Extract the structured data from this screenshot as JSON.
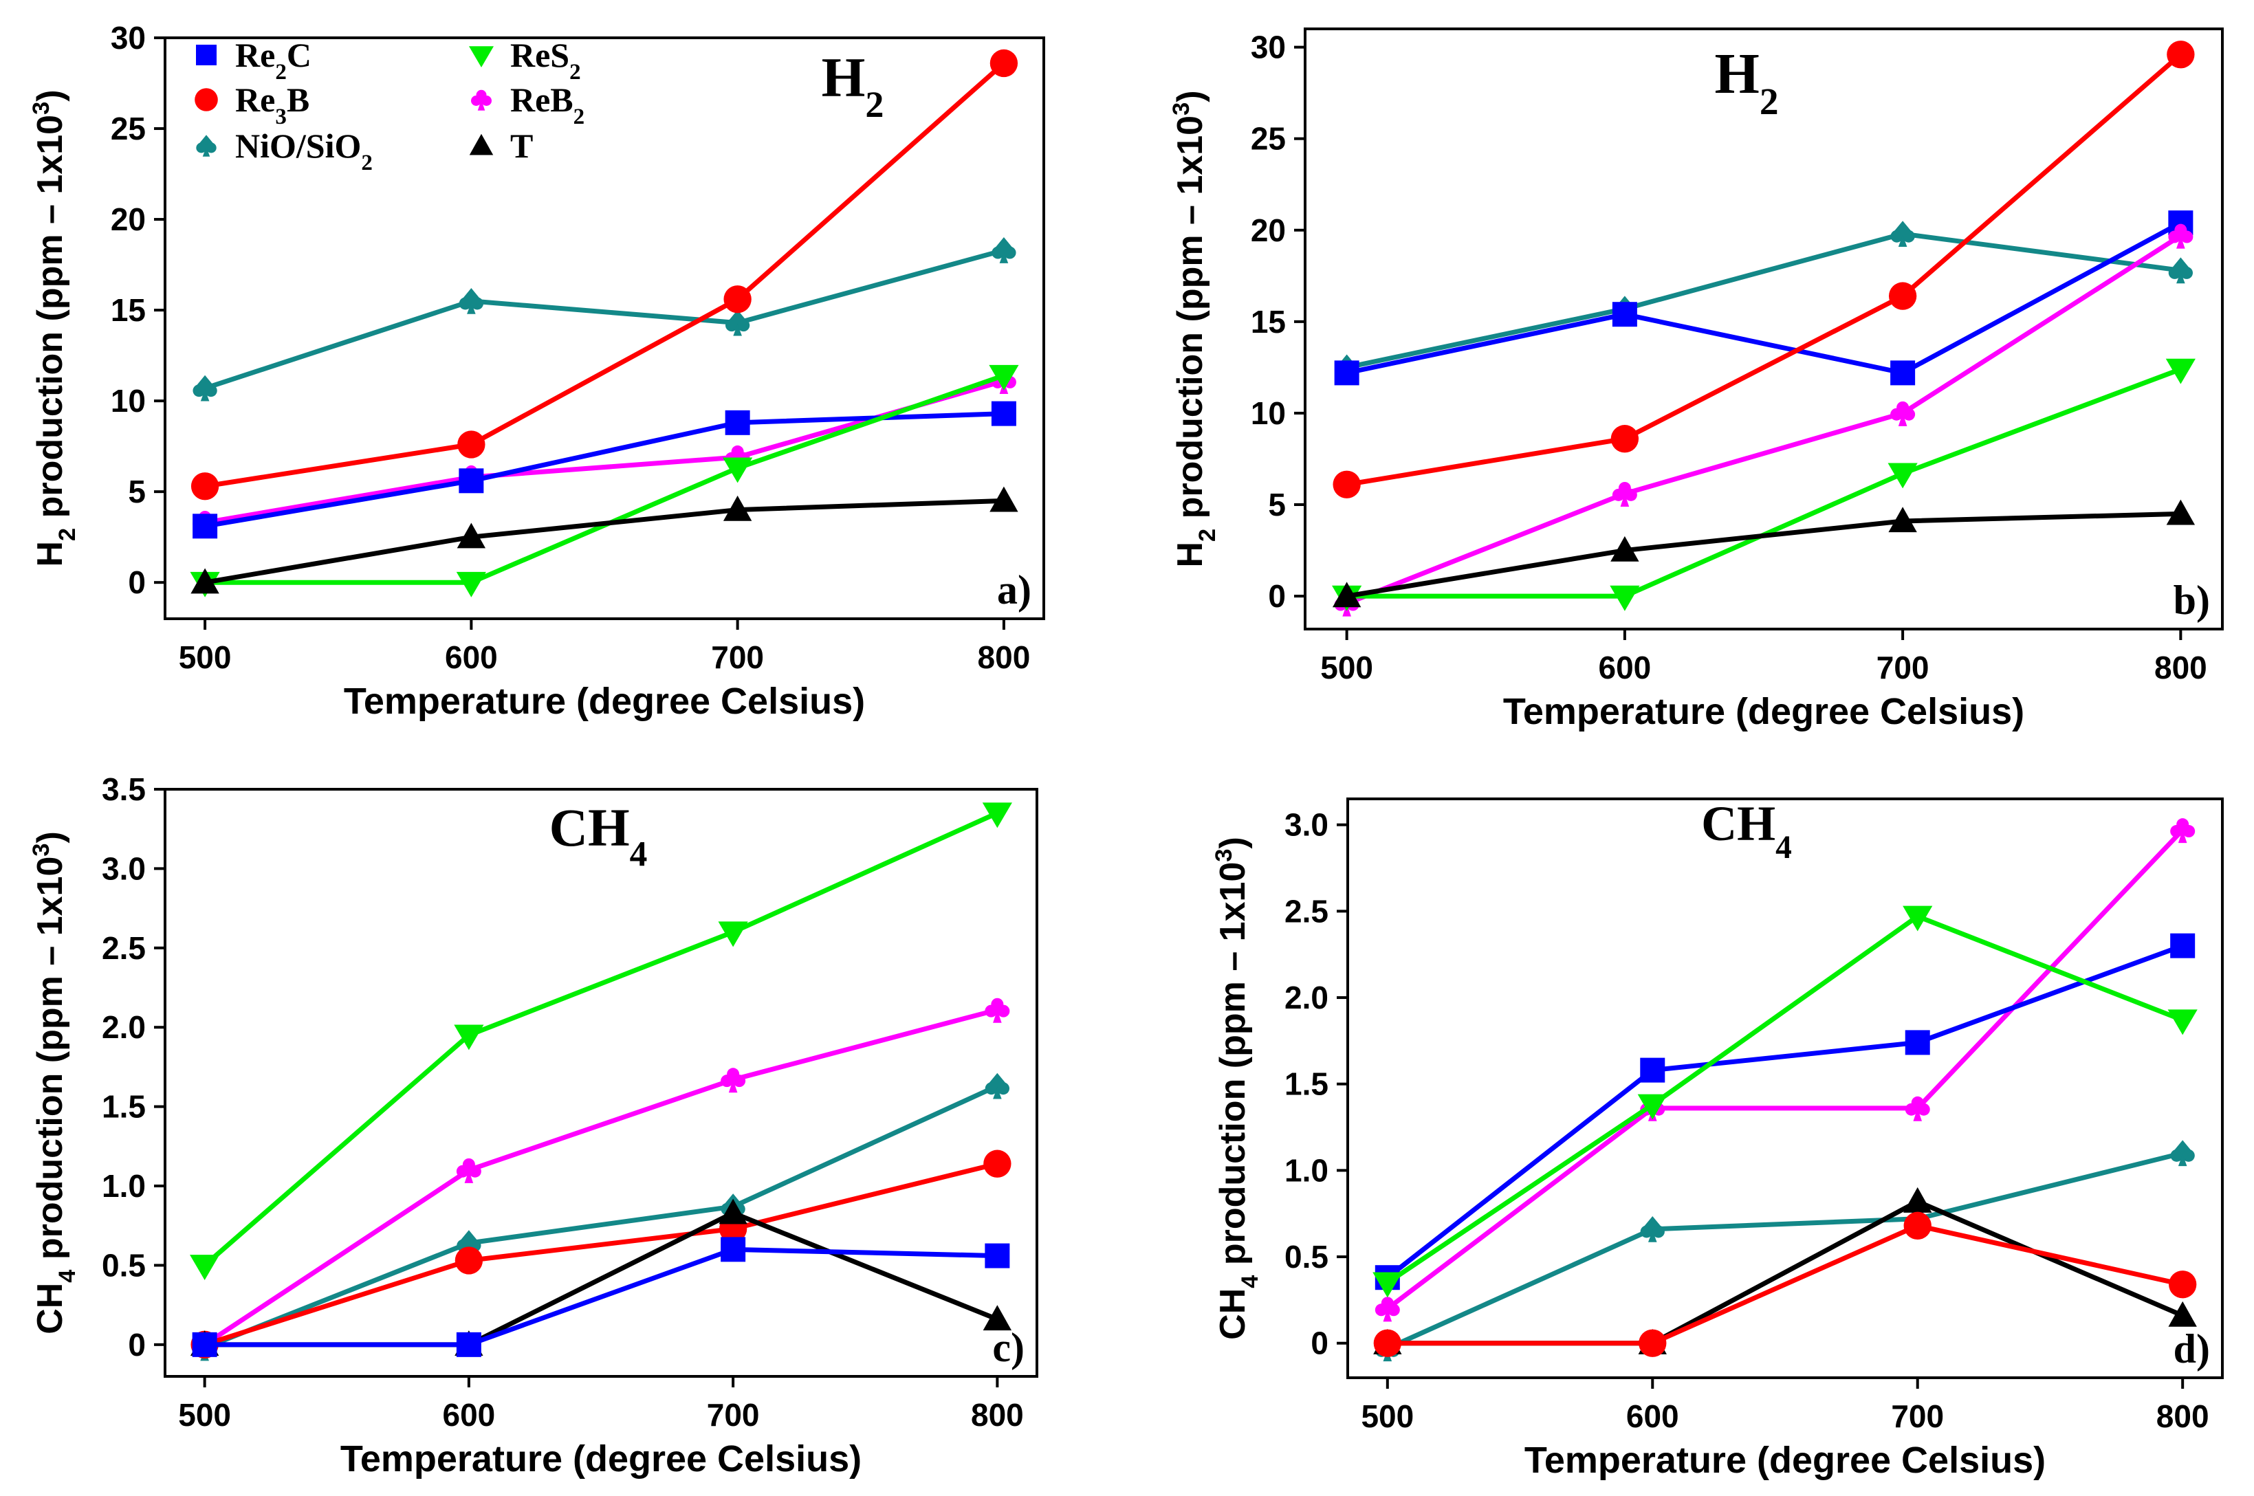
{
  "legend": [
    {
      "label": "Re₂C",
      "series": "Re2C"
    },
    {
      "label": "ReS₂",
      "series": "ReS2"
    },
    {
      "label": "Re₃B",
      "series": "Re3B"
    },
    {
      "label": "ReB₂",
      "series": "ReB2"
    },
    {
      "label": "NiO/SiO₂",
      "series": "NiO/SiO2"
    },
    {
      "label": "T",
      "series": "T"
    }
  ],
  "series_styles": {
    "Re2C": {
      "color": "#0000ff",
      "marker": "square"
    },
    "Re3B": {
      "color": "#ff0000",
      "marker": "circle"
    },
    "ReS2": {
      "color": "#00ee00",
      "marker": "triangle-down"
    },
    "ReB2": {
      "color": "#ff00ff",
      "marker": "club"
    },
    "NiO/SiO2": {
      "color": "#138888",
      "marker": "spade"
    },
    "T": {
      "color": "#000000",
      "marker": "triangle-up"
    }
  },
  "chart_data": [
    {
      "type": "line",
      "panel_label": "a)",
      "title": "H₂",
      "xlabel": "Temperature (degree Celsius)",
      "ylabel": "H₂ production (ppm – 1x10³)",
      "x": [
        500,
        600,
        700,
        800
      ],
      "xticks": [
        "500",
        "600",
        "700",
        "800"
      ],
      "yticks": [
        "0",
        "5",
        "10",
        "15",
        "20",
        "25",
        "30"
      ],
      "xlim": [
        485,
        815
      ],
      "ylim": [
        -2,
        30
      ],
      "series": [
        {
          "name": "NiO/SiO2",
          "values": [
            10.7,
            15.5,
            14.3,
            18.3
          ]
        },
        {
          "name": "ReB2",
          "values": [
            3.3,
            5.8,
            6.9,
            11.1
          ]
        },
        {
          "name": "Re2C",
          "values": [
            3.1,
            5.6,
            8.8,
            9.3
          ]
        },
        {
          "name": "ReS2",
          "values": [
            0,
            0,
            6.3,
            11.4
          ]
        },
        {
          "name": "T",
          "values": [
            0,
            2.5,
            4.0,
            4.5
          ]
        },
        {
          "name": "Re3B",
          "values": [
            5.3,
            7.6,
            15.6,
            28.6
          ]
        }
      ]
    },
    {
      "type": "line",
      "panel_label": "b)",
      "title": "H₂",
      "xlabel": "Temperature (degree Celsius)",
      "ylabel": "H₂ production (ppm – 1x10³)",
      "x": [
        500,
        600,
        700,
        800
      ],
      "xticks": [
        "500",
        "600",
        "700",
        "800"
      ],
      "yticks": [
        "0",
        "5",
        "10",
        "15",
        "20",
        "25",
        "30"
      ],
      "xlim": [
        485,
        815
      ],
      "ylim": [
        -1.8,
        31
      ],
      "series": [
        {
          "name": "NiO/SiO2",
          "values": [
            12.5,
            15.7,
            19.8,
            17.8
          ]
        },
        {
          "name": "Re2C",
          "values": [
            12.2,
            15.4,
            12.2,
            20.4
          ]
        },
        {
          "name": "ReB2",
          "values": [
            -0.4,
            5.6,
            10.0,
            19.7
          ]
        },
        {
          "name": "ReS2",
          "values": [
            0,
            0,
            6.7,
            12.4
          ]
        },
        {
          "name": "T",
          "values": [
            0,
            2.5,
            4.1,
            4.5
          ]
        },
        {
          "name": "Re3B",
          "values": [
            6.1,
            8.6,
            16.4,
            29.6
          ]
        }
      ]
    },
    {
      "type": "line",
      "panel_label": "c)",
      "title": "CH₄",
      "xlabel": "Temperature (degree Celsius)",
      "ylabel": "CH₄ production (ppm – 1x10³)",
      "x": [
        500,
        600,
        700,
        800
      ],
      "xticks": [
        "500",
        "600",
        "700",
        "800"
      ],
      "yticks": [
        "0",
        "0.5",
        "1.0",
        "1.5",
        "2.0",
        "2.5",
        "3.0",
        "3.5"
      ],
      "xlim": [
        485,
        815
      ],
      "ylim": [
        -0.2,
        3.5
      ],
      "series": [
        {
          "name": "ReS2",
          "values": [
            0.5,
            1.95,
            2.6,
            3.35
          ]
        },
        {
          "name": "ReB2",
          "values": [
            0,
            1.1,
            1.67,
            2.11
          ]
        },
        {
          "name": "NiO/SiO2",
          "values": [
            -0.02,
            0.64,
            0.87,
            1.63
          ]
        },
        {
          "name": "Re3B",
          "values": [
            0,
            0.53,
            0.73,
            1.14
          ]
        },
        {
          "name": "T",
          "values": [
            0,
            0,
            0.83,
            0.16
          ]
        },
        {
          "name": "Re2C",
          "values": [
            0,
            0,
            0.6,
            0.56
          ]
        }
      ]
    },
    {
      "type": "line",
      "panel_label": "d)",
      "title": "CH₄",
      "xlabel": "Temperature (degree Celsius)",
      "ylabel": "CH₄ production (ppm – 1x10³)",
      "x": [
        500,
        600,
        700,
        800
      ],
      "xticks": [
        "500",
        "600",
        "700",
        "800"
      ],
      "yticks": [
        "0",
        "0.5",
        "1.0",
        "1.5",
        "2.0",
        "2.5",
        "3.0"
      ],
      "xlim": [
        485,
        815
      ],
      "ylim": [
        -0.2,
        3.15
      ],
      "series": [
        {
          "name": "ReB2",
          "values": [
            0.2,
            1.36,
            1.36,
            2.97
          ]
        },
        {
          "name": "Re2C",
          "values": [
            0.38,
            1.58,
            1.74,
            2.3
          ]
        },
        {
          "name": "ReS2",
          "values": [
            0.35,
            1.38,
            2.47,
            1.87
          ]
        },
        {
          "name": "NiO/SiO2",
          "values": [
            -0.03,
            0.66,
            0.72,
            1.1
          ]
        },
        {
          "name": "T",
          "values": [
            0,
            0,
            0.82,
            0.16
          ]
        },
        {
          "name": "Re3B",
          "values": [
            0,
            0,
            0.68,
            0.34
          ]
        }
      ]
    }
  ]
}
